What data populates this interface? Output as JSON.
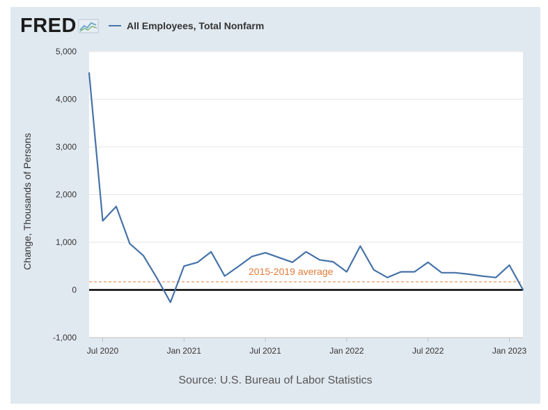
{
  "header": {
    "logo_text": "FRED",
    "logo_icon": "fred-line-chart-icon"
  },
  "legend": {
    "series_label": "All Employees, Total Nonfarm",
    "color": "#4572a7"
  },
  "source_text": "Source: U.S. Bureau of Labor Statistics",
  "chart_data": {
    "type": "line",
    "title": "",
    "xlabel": "",
    "ylabel": "Change, Thousands of Persons",
    "ylim": [
      -1000,
      5000
    ],
    "yticks": [
      -1000,
      0,
      1000,
      2000,
      3000,
      4000,
      5000
    ],
    "ytick_labels": [
      "-1,000",
      "0",
      "1,000",
      "2,000",
      "3,000",
      "4,000",
      "5,000"
    ],
    "xlim": [
      "2020-06",
      "2023-02"
    ],
    "xticks": [
      "2020-07",
      "2021-01",
      "2021-07",
      "2022-01",
      "2022-07",
      "2023-01"
    ],
    "xtick_labels": [
      "Jul 2020",
      "Jan 2021",
      "Jul 2021",
      "Jan 2022",
      "Jul 2022",
      "Jan 2023"
    ],
    "grid": true,
    "zero_line": true,
    "series": [
      {
        "name": "All Employees, Total Nonfarm",
        "color": "#4572a7",
        "x": [
          "2020-06",
          "2020-07",
          "2020-08",
          "2020-09",
          "2020-10",
          "2020-11",
          "2020-12",
          "2021-01",
          "2021-02",
          "2021-03",
          "2021-04",
          "2021-05",
          "2021-06",
          "2021-07",
          "2021-08",
          "2021-09",
          "2021-10",
          "2021-11",
          "2021-12",
          "2022-01",
          "2022-02",
          "2022-03",
          "2022-04",
          "2022-05",
          "2022-06",
          "2022-07",
          "2022-08",
          "2022-09",
          "2022-10",
          "2022-11",
          "2022-12",
          "2023-01",
          "2023-02"
        ],
        "values": [
          4550,
          1450,
          1750,
          970,
          720,
          250,
          -260,
          500,
          580,
          800,
          290,
          490,
          700,
          780,
          680,
          580,
          800,
          630,
          590,
          380,
          920,
          420,
          260,
          380,
          380,
          580,
          360,
          360,
          330,
          290,
          260,
          520,
          4
        ]
      }
    ],
    "reference_line": {
      "label": "2015-2019 average",
      "value": 170,
      "color": "#e07b39",
      "style": "dashed"
    }
  }
}
